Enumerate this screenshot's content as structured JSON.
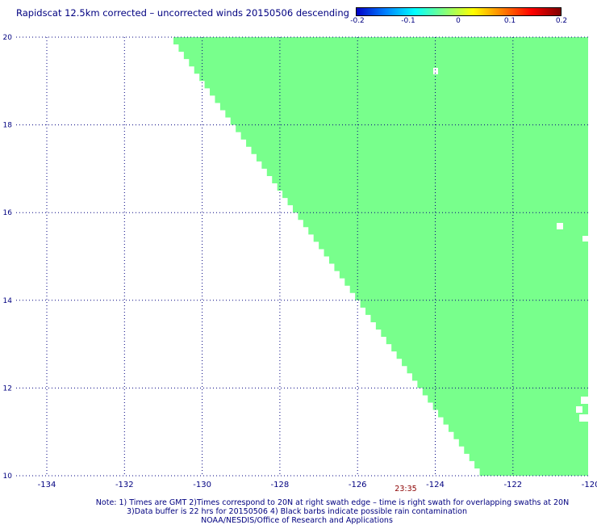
{
  "title": "Rapidscat 12.5km corrected – uncorrected winds 20150506 descending",
  "colorbar": {
    "ticks": [
      "-0.2",
      "-0.1",
      "0",
      "0.1",
      "0.2"
    ],
    "colors": [
      "#0000c8",
      "#0080ff",
      "#00ffff",
      "#80ff80",
      "#ffff00",
      "#ff8000",
      "#ff0000",
      "#800000"
    ]
  },
  "map": {
    "lon_labels": [
      "-134",
      "-132",
      "-130",
      "-128",
      "-126",
      "-124",
      "-122",
      "-120"
    ],
    "lat_labels": [
      "20",
      "18",
      "16",
      "14",
      "12",
      "10"
    ],
    "swath_color": "#78ff8c",
    "grid_color": "#000080"
  },
  "time_label": "23:35",
  "notes": {
    "line1": "Note: 1) Times are GMT 2)Times correspond to 20N at right swath edge – time is right swath for overlapping swaths at 20N",
    "line2": "3)Data buffer is 22 hrs for 20150506 4) Black barbs indicate possible rain contamination",
    "line3": "NOAA/NESDIS/Office of Research and Applications"
  }
}
